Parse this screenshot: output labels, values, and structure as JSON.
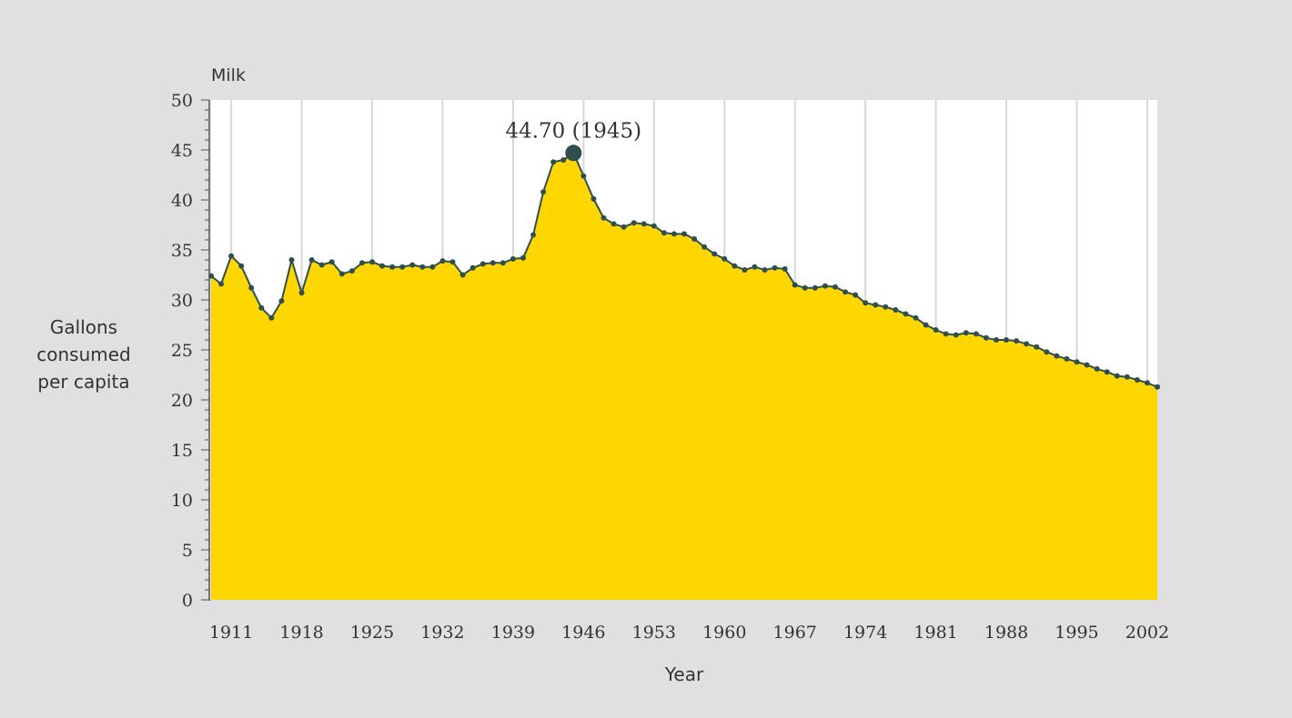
{
  "colors": {
    "background": "#e0e0e0",
    "plot_background": "#ffffff",
    "area_fill": "#ffd700",
    "line": "#2f4f4f",
    "gridline": "#d8d8d8"
  },
  "chart_data": {
    "type": "area",
    "title": "Milk",
    "xlabel": "Year",
    "ylabel": [
      "Gallons",
      "consumed",
      "per capita"
    ],
    "xlim": [
      1909,
      2003
    ],
    "ylim": [
      0,
      50
    ],
    "yticks": [
      0,
      5,
      10,
      15,
      20,
      25,
      30,
      35,
      40,
      45,
      50
    ],
    "xticks": [
      1911,
      1918,
      1925,
      1932,
      1939,
      1946,
      1953,
      1960,
      1967,
      1974,
      1981,
      1988,
      1995,
      2002
    ],
    "grid": "vertical",
    "annotation": {
      "text": "44.70 (1945)",
      "x": 1945,
      "y": 44.7
    },
    "series": [
      {
        "x": [
          1909,
          1910,
          1911,
          1912,
          1913,
          1914,
          1915,
          1916,
          1917,
          1918,
          1919,
          1920,
          1921,
          1922,
          1923,
          1924,
          1925,
          1926,
          1927,
          1928,
          1929,
          1930,
          1931,
          1932,
          1933,
          1934,
          1935,
          1936,
          1937,
          1938,
          1939,
          1940,
          1941,
          1942,
          1943,
          1944,
          1945,
          1946,
          1947,
          1948,
          1949,
          1950,
          1951,
          1952,
          1953,
          1954,
          1955,
          1956,
          1957,
          1958,
          1959,
          1960,
          1961,
          1962,
          1963,
          1964,
          1965,
          1966,
          1967,
          1968,
          1969,
          1970,
          1971,
          1972,
          1973,
          1974,
          1975,
          1976,
          1977,
          1978,
          1979,
          1980,
          1981,
          1982,
          1983,
          1984,
          1985,
          1986,
          1987,
          1988,
          1989,
          1990,
          1991,
          1992,
          1993,
          1994,
          1995,
          1996,
          1997,
          1998,
          1999,
          2000,
          2001,
          2002,
          2003
        ],
        "values": [
          32.4,
          31.6,
          34.4,
          33.4,
          31.2,
          29.2,
          28.2,
          29.9,
          34.0,
          30.7,
          34.0,
          33.5,
          33.8,
          32.6,
          32.9,
          33.7,
          33.8,
          33.4,
          33.3,
          33.3,
          33.5,
          33.3,
          33.3,
          33.9,
          33.8,
          32.5,
          33.2,
          33.6,
          33.7,
          33.7,
          34.1,
          34.2,
          36.5,
          40.8,
          43.8,
          44.0,
          44.7,
          42.4,
          40.1,
          38.2,
          37.6,
          37.3,
          37.7,
          37.6,
          37.4,
          36.7,
          36.6,
          36.6,
          36.1,
          35.3,
          34.6,
          34.1,
          33.4,
          33.0,
          33.3,
          33.0,
          33.2,
          33.1,
          31.5,
          31.2,
          31.2,
          31.4,
          31.3,
          30.8,
          30.5,
          29.7,
          29.5,
          29.3,
          29.0,
          28.6,
          28.2,
          27.5,
          27.0,
          26.6,
          26.5,
          26.7,
          26.6,
          26.2,
          26.0,
          26.0,
          25.9,
          25.6,
          25.3,
          24.8,
          24.4,
          24.1,
          23.8,
          23.5,
          23.1,
          22.8,
          22.4,
          22.3,
          22.0,
          21.7,
          21.3
        ]
      }
    ]
  }
}
